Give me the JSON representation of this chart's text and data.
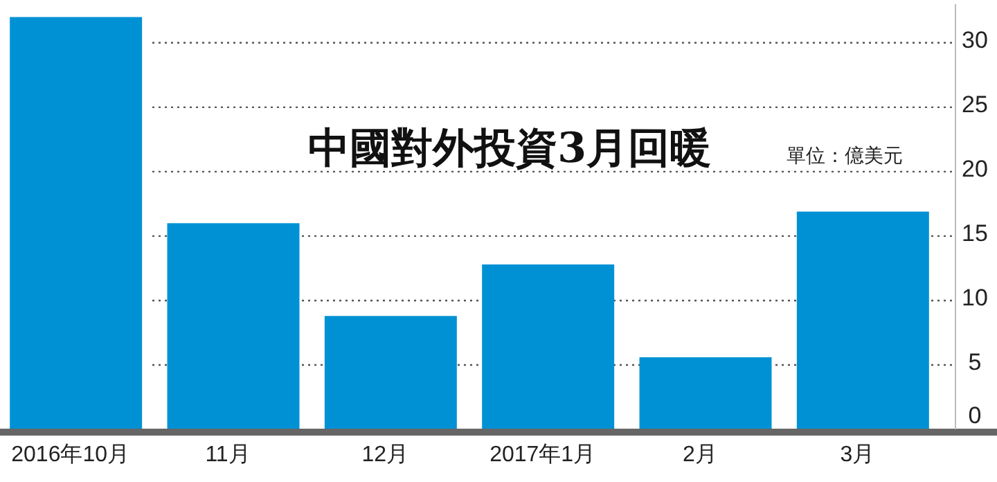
{
  "chart_data": {
    "type": "bar",
    "title": "中國對外投資3月回暖",
    "subtitle": "單位：億美元",
    "categories": [
      "2016年10月",
      "11月",
      "12月",
      "2017年1月",
      "2月",
      "3月"
    ],
    "values": [
      32,
      16,
      8.8,
      12.8,
      5.6,
      16.9
    ],
    "color": "#0091d5",
    "ylim": [
      0,
      33
    ],
    "yticks": [
      0,
      5,
      10,
      15,
      20,
      25,
      30
    ],
    "grid": "y"
  }
}
